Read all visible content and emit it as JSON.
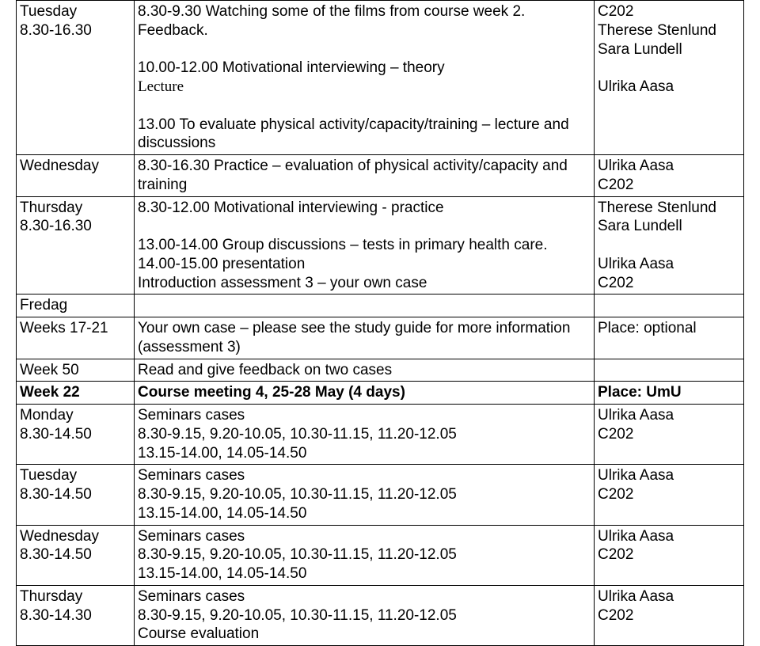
{
  "rows": [
    {
      "col1": [
        {
          "t": "Tuesday"
        },
        {
          "t": "8.30-16.30"
        }
      ],
      "col2": [
        {
          "t": "8.30-9.30 Watching some of the films from course week 2."
        },
        {
          "t": "Feedback."
        },
        {
          "t": "10.00-12.00 Motivational interviewing – theory",
          "gap": true
        },
        {
          "t": "Lecture",
          "serif": true
        },
        {
          "t": "13.00 To evaluate physical activity/capacity/training – lecture and discussions",
          "gap": true
        }
      ],
      "col3": [
        {
          "t": "C202"
        },
        {
          "t": "Therese Stenlund"
        },
        {
          "t": "Sara Lundell"
        },
        {
          "t": "Ulrika Aasa",
          "gap": true
        }
      ]
    },
    {
      "col1": [
        {
          "t": "Wednesday"
        }
      ],
      "col2": [
        {
          "t": "8.30-16.30 Practice – evaluation of physical activity/capacity and training"
        }
      ],
      "col3": [
        {
          "t": "Ulrika Aasa"
        },
        {
          "t": "C202"
        }
      ]
    },
    {
      "col1": [
        {
          "t": "Thursday"
        },
        {
          "t": "8.30-16.30"
        }
      ],
      "col2": [
        {
          "t": "8.30-12.00 Motivational interviewing - practice"
        },
        {
          "t": "13.00-14.00 Group discussions – tests in primary health care.",
          "gap": true
        },
        {
          "t": "14.00-15.00 presentation"
        },
        {
          "t": "Introduction assessment 3 – your own case"
        }
      ],
      "col3": [
        {
          "t": "Therese Stenlund"
        },
        {
          "t": "Sara Lundell"
        },
        {
          "t": "Ulrika Aasa",
          "gap": true
        },
        {
          "t": "C202"
        }
      ]
    },
    {
      "col1": [
        {
          "t": "Fredag"
        }
      ],
      "col2": [
        {
          "t": ""
        }
      ],
      "col3": [
        {
          "t": ""
        }
      ]
    },
    {
      "col1": [
        {
          "t": "Weeks 17-21"
        }
      ],
      "col2": [
        {
          "t": "Your own case – please see the study guide for more information (assessment 3)"
        }
      ],
      "col3": [
        {
          "t": "Place: optional"
        }
      ]
    },
    {
      "col1": [
        {
          "t": "Week 50"
        }
      ],
      "col2": [
        {
          "t": "Read and give feedback on two cases"
        }
      ],
      "col3": [
        {
          "t": ""
        }
      ]
    },
    {
      "col1": [
        {
          "t": "Week 22",
          "b": true
        }
      ],
      "col2": [
        {
          "t": "Course meeting 4, 25-28 May (4 days)",
          "b": true
        }
      ],
      "col3": [
        {
          "t": "Place: UmU",
          "b": true
        }
      ]
    },
    {
      "col1": [
        {
          "t": "Monday"
        },
        {
          "t": "8.30-14.50"
        }
      ],
      "col2": [
        {
          "t": "Seminars cases"
        },
        {
          "t": "8.30-9.15, 9.20-10.05, 10.30-11.15, 11.20-12.05"
        },
        {
          "t": "13.15-14.00, 14.05-14.50"
        }
      ],
      "col3": [
        {
          "t": "Ulrika Aasa"
        },
        {
          "t": "C202"
        }
      ]
    },
    {
      "col1": [
        {
          "t": "Tuesday"
        },
        {
          "t": "8.30-14.50"
        }
      ],
      "col2": [
        {
          "t": "Seminars cases"
        },
        {
          "t": "8.30-9.15, 9.20-10.05, 10.30-11.15, 11.20-12.05"
        },
        {
          "t": "13.15-14.00, 14.05-14.50"
        }
      ],
      "col3": [
        {
          "t": "Ulrika Aasa"
        },
        {
          "t": "C202"
        }
      ]
    },
    {
      "col1": [
        {
          "t": "Wednesday"
        },
        {
          "t": "8.30-14.50"
        }
      ],
      "col2": [
        {
          "t": "Seminars cases"
        },
        {
          "t": "8.30-9.15, 9.20-10.05, 10.30-11.15, 11.20-12.05"
        },
        {
          "t": "13.15-14.00, 14.05-14.50"
        }
      ],
      "col3": [
        {
          "t": "Ulrika Aasa"
        },
        {
          "t": "C202"
        }
      ]
    },
    {
      "col1": [
        {
          "t": "Thursday"
        },
        {
          "t": "8.30-14.30"
        }
      ],
      "col2": [
        {
          "t": "Seminars cases"
        },
        {
          "t": "8.30-9.15, 9.20-10.05, 10.30-11.15, 11.20-12.05"
        },
        {
          "t": "Course evaluation"
        }
      ],
      "col3": [
        {
          "t": "Ulrika Aasa"
        },
        {
          "t": "C202"
        }
      ]
    }
  ]
}
